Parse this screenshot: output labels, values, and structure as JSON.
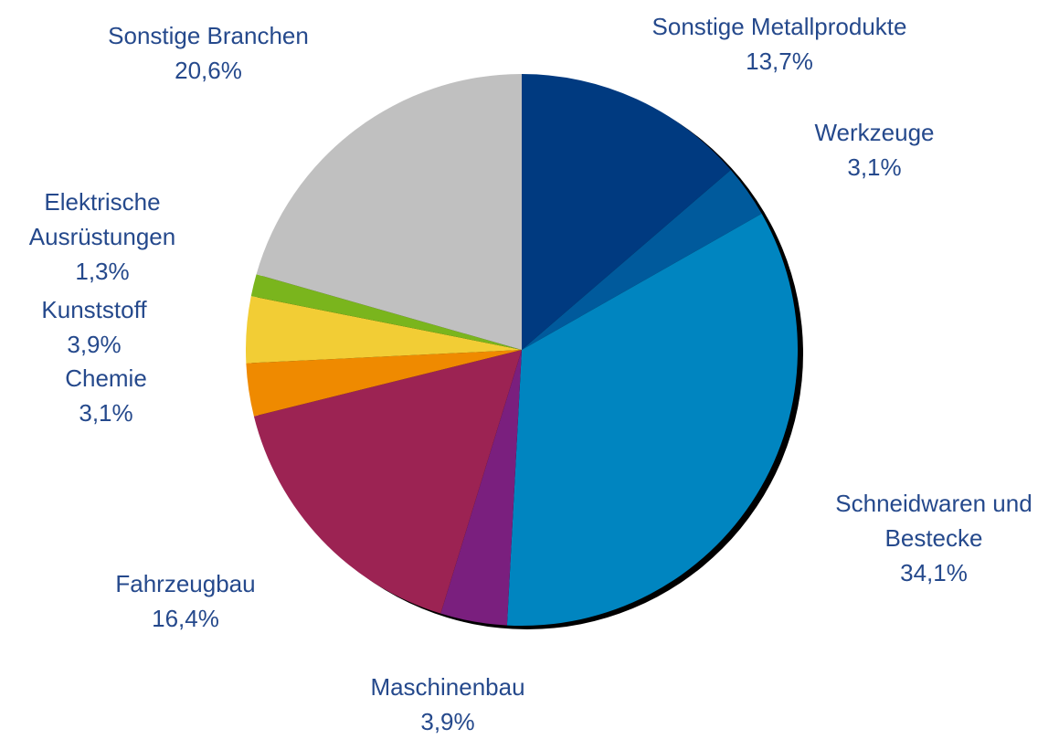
{
  "chart_data": {
    "type": "pie",
    "categories": [
      "Sonstige Metallprodukte",
      "Werkzeuge",
      "Schneidwaren und Bestecke",
      "Maschinenbau",
      "Fahrzeugbau",
      "Chemie",
      "Kunststoff",
      "Elektrische Ausrüstungen",
      "Sonstige Branchen"
    ],
    "values": [
      13.7,
      3.1,
      34.1,
      3.9,
      16.4,
      3.1,
      3.9,
      1.3,
      20.6
    ],
    "value_labels": [
      "13,7%",
      "3,1%",
      "34,1%",
      "3,9%",
      "16,4%",
      "3,1%",
      "3,9%",
      "1,3%",
      "20,6%"
    ],
    "colors": [
      "#003a80",
      "#005a9c",
      "#0085c0",
      "#7a1f7e",
      "#9c2353",
      "#ef8a00",
      "#f2cd35",
      "#7ab51d",
      "#c0c0c0"
    ]
  }
}
